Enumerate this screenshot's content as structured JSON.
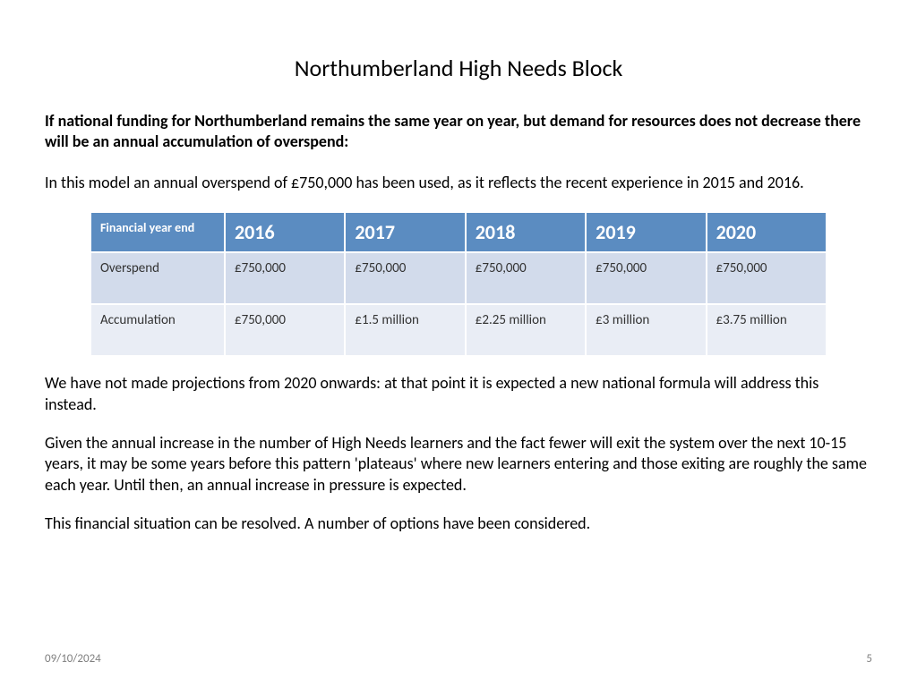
{
  "title": "Northumberland High Needs Block",
  "p_bold": "If national funding for Northumberland remains the same year on year, but demand for resources does not decrease there will be an annual accumulation of overspend:",
  "p_intro": "In this model an annual overspend of £750,000 has been used, as it reflects the recent experience in 2015 and 2016.",
  "table": {
    "header_bg": "#5b8cc1",
    "header_fg": "#ffffff",
    "row1_bg": "#d2dbeb",
    "row2_bg": "#e9edf5",
    "cell_fg": "#333333",
    "corner_label": "Financial year end",
    "columns": [
      "2016",
      "2017",
      "2018",
      "2019",
      "2020"
    ],
    "rows": [
      {
        "label": "Overspend",
        "cells": [
          "£750,000",
          "£750,000",
          "£750,000",
          "£750,000",
          "£750,000"
        ]
      },
      {
        "label": "Accumulation",
        "cells": [
          "£750,000",
          "£1.5 million",
          "£2.25 million",
          "£3 million",
          "£3.75 million"
        ]
      }
    ]
  },
  "p_after1": "We have not made projections from 2020 onwards: at that point it is expected a new national formula will address this instead.",
  "p_after2": "Given the annual increase in the number of High Needs learners and the fact fewer will exit the system over the next 10-15 years, it may be some years before this pattern 'plateaus' where new learners entering and those exiting are roughly the same each year. Until then, an annual increase in pressure is expected.",
  "p_after3": "This financial situation can be resolved. A number of options have been considered.",
  "footer": {
    "date": "09/10/2024",
    "page": "5"
  }
}
